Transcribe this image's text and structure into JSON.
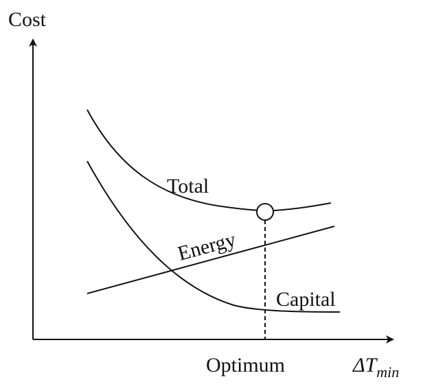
{
  "y_axis": {
    "label": "Cost"
  },
  "x_axis": {
    "label": {
      "main": "ΔT",
      "subscript": "min"
    }
  },
  "curves": {
    "total": "Total",
    "energy": "Energy",
    "capital": "Capital"
  },
  "optimum": "Optimum"
}
